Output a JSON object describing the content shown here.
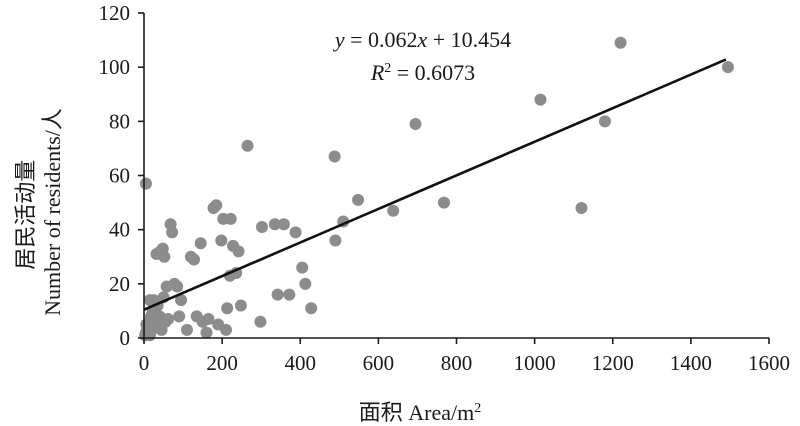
{
  "chart_data": {
    "type": "scatter",
    "xlabel": "面积 Area/m²",
    "ylabel": "居民活动量 Number of residents/人",
    "xlim": [
      0,
      1600
    ],
    "ylim": [
      0,
      120
    ],
    "x_ticks": [
      "0",
      "200",
      "400",
      "600",
      "800",
      "1000",
      "1200",
      "1400",
      "1600"
    ],
    "y_ticks": [
      "0",
      "20",
      "40",
      "60",
      "80",
      "100",
      "120"
    ],
    "grid": false,
    "trendline": {
      "slope": 0.062,
      "intercept": 10.454,
      "x_range": [
        0,
        1490
      ],
      "equation": "y = 0.062x + 10.454",
      "r_squared": "R² = 0.6073"
    },
    "marker_color": "#8c8c8c",
    "series": [
      {
        "points": [
          [
            5,
            57
          ],
          [
            3,
            1
          ],
          [
            5,
            2
          ],
          [
            8,
            3
          ],
          [
            10,
            4
          ],
          [
            12,
            2
          ],
          [
            15,
            1
          ],
          [
            6,
            5
          ],
          [
            14,
            6
          ],
          [
            18,
            8
          ],
          [
            20,
            3
          ],
          [
            22,
            10
          ],
          [
            25,
            5
          ],
          [
            28,
            7
          ],
          [
            30,
            9
          ],
          [
            35,
            12
          ],
          [
            38,
            4
          ],
          [
            40,
            8
          ],
          [
            45,
            3
          ],
          [
            50,
            15
          ],
          [
            55,
            6
          ],
          [
            15,
            14
          ],
          [
            25,
            14
          ],
          [
            32,
            31
          ],
          [
            42,
            32
          ],
          [
            48,
            33
          ],
          [
            52,
            30
          ],
          [
            58,
            19
          ],
          [
            62,
            7
          ],
          [
            68,
            42
          ],
          [
            72,
            39
          ],
          [
            78,
            20
          ],
          [
            85,
            19
          ],
          [
            90,
            8
          ],
          [
            95,
            14
          ],
          [
            110,
            3
          ],
          [
            120,
            30
          ],
          [
            128,
            29
          ],
          [
            135,
            8
          ],
          [
            145,
            35
          ],
          [
            150,
            6
          ],
          [
            160,
            2
          ],
          [
            165,
            7
          ],
          [
            178,
            48
          ],
          [
            185,
            49
          ],
          [
            190,
            5
          ],
          [
            198,
            36
          ],
          [
            203,
            44
          ],
          [
            210,
            3
          ],
          [
            213,
            11
          ],
          [
            220,
            23
          ],
          [
            222,
            44
          ],
          [
            228,
            34
          ],
          [
            236,
            24
          ],
          [
            242,
            32
          ],
          [
            248,
            12
          ],
          [
            265,
            71
          ],
          [
            298,
            6
          ],
          [
            302,
            41
          ],
          [
            335,
            42
          ],
          [
            342,
            16
          ],
          [
            358,
            42
          ],
          [
            372,
            16
          ],
          [
            388,
            39
          ],
          [
            405,
            26
          ],
          [
            413,
            20
          ],
          [
            428,
            11
          ],
          [
            488,
            67
          ],
          [
            490,
            36
          ],
          [
            510,
            43
          ],
          [
            548,
            51
          ],
          [
            638,
            47
          ],
          [
            695,
            79
          ],
          [
            768,
            50
          ],
          [
            1015,
            88
          ],
          [
            1120,
            48
          ],
          [
            1180,
            80
          ],
          [
            1220,
            109
          ],
          [
            1495,
            100
          ]
        ]
      }
    ]
  }
}
